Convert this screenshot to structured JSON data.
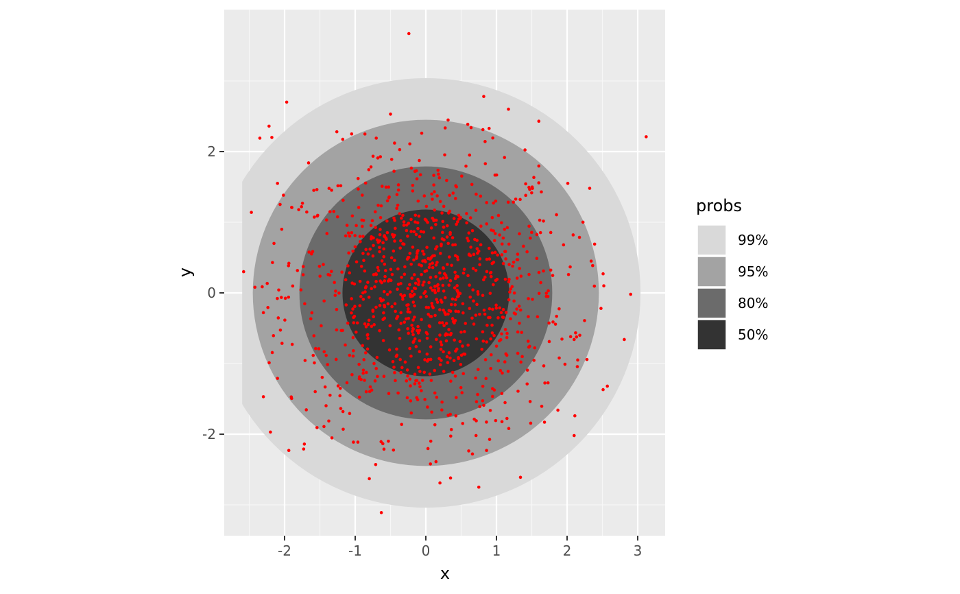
{
  "chart_data": {
    "type": "scatter",
    "title": "",
    "xlabel": "x",
    "ylabel": "y",
    "xlim": [
      -2.87,
      3.4
    ],
    "ylim": [
      -3.44,
      3.9
    ],
    "x_ticks": [
      -2,
      -1,
      0,
      1,
      2,
      3
    ],
    "y_ticks": [
      -2,
      0,
      2
    ],
    "x_tick_labels": [
      "-2",
      "-1",
      "0",
      "1",
      "2",
      "3"
    ],
    "y_tick_labels": [
      "-2",
      "0",
      "2"
    ],
    "grid": true,
    "legend_position": "right",
    "legend": {
      "title": "probs",
      "entries": [
        {
          "label": "99%",
          "color": "#d9d9d9"
        },
        {
          "label": "95%",
          "color": "#a3a3a3"
        },
        {
          "label": "80%",
          "color": "#6b6b6b"
        },
        {
          "label": "50%",
          "color": "#333333"
        }
      ]
    },
    "regions": [
      {
        "prob": "99%",
        "center": [
          0,
          0
        ],
        "radius": 3.04,
        "clip_xmin": -2.6,
        "color": "#d9d9d9"
      },
      {
        "prob": "95%",
        "center": [
          0,
          0
        ],
        "radius": 2.45,
        "color": "#a3a3a3"
      },
      {
        "prob": "80%",
        "center": [
          0,
          0
        ],
        "radius": 1.79,
        "color": "#6b6b6b"
      },
      {
        "prob": "50%",
        "center": [
          0,
          0
        ],
        "radius": 1.18,
        "color": "#333333"
      }
    ],
    "points_color": "#ff0000",
    "points": [
      [
        -0.24,
        3.67
      ],
      [
        3.12,
        2.21
      ],
      [
        -1.97,
        2.7
      ],
      [
        -2.22,
        2.36
      ],
      [
        -2.35,
        2.19
      ],
      [
        -2.18,
        2.2
      ],
      [
        -0.5,
        2.53
      ],
      [
        0.82,
        2.78
      ],
      [
        1.17,
        2.6
      ],
      [
        1.6,
        2.43
      ],
      [
        -1.26,
        2.28
      ],
      [
        -1.05,
        2.25
      ],
      [
        -2.58,
        0.3
      ],
      [
        -2.47,
        1.14
      ],
      [
        -2.42,
        0.08
      ],
      [
        -2.1,
        1.55
      ],
      [
        -2.15,
        0.7
      ],
      [
        -2.3,
        -0.28
      ],
      [
        2.32,
        1.48
      ],
      [
        2.39,
        0.69
      ],
      [
        2.51,
        0.27
      ],
      [
        2.52,
        0.1
      ],
      [
        2.9,
        -0.02
      ],
      [
        2.81,
        -0.66
      ],
      [
        2.48,
        -0.22
      ],
      [
        2.18,
        -0.6
      ],
      [
        2.51,
        -1.37
      ],
      [
        2.57,
        -1.32
      ],
      [
        -2.2,
        -1.97
      ],
      [
        -1.94,
        -2.23
      ],
      [
        -1.72,
        -2.14
      ],
      [
        -1.73,
        -2.21
      ],
      [
        -2.3,
        -1.47
      ],
      [
        -2.1,
        -1.21
      ],
      [
        -0.63,
        -3.11
      ],
      [
        0.75,
        -2.75
      ],
      [
        1.34,
        -2.61
      ],
      [
        0.2,
        -2.69
      ],
      [
        0.35,
        -2.62
      ],
      [
        -0.8,
        -2.63
      ],
      [
        -0.71,
        -2.43
      ],
      [
        2.11,
        -1.74
      ],
      [
        2.1,
        -2.02
      ],
      [
        -0.53,
        -2.1
      ],
      [
        0.07,
        -2.1
      ],
      [
        0.66,
        -2.28
      ],
      [
        0.86,
        -2.23
      ],
      [
        1.68,
        -1.83
      ],
      [
        1.87,
        -1.66
      ],
      [
        -1.17,
        -1.93
      ],
      [
        -1.66,
        1.84
      ],
      [
        -1.9,
        1.21
      ],
      [
        -1.76,
        1.22
      ],
      [
        -2.04,
        0.9
      ],
      [
        2.01,
        1.55
      ],
      [
        1.95,
        0.68
      ],
      [
        2.02,
        0.26
      ],
      [
        2.05,
        -0.62
      ],
      [
        2.1,
        -0.66
      ],
      [
        1.97,
        -1.01
      ]
    ],
    "inner_point_seed": 12345,
    "inner_point_count": 1000
  }
}
